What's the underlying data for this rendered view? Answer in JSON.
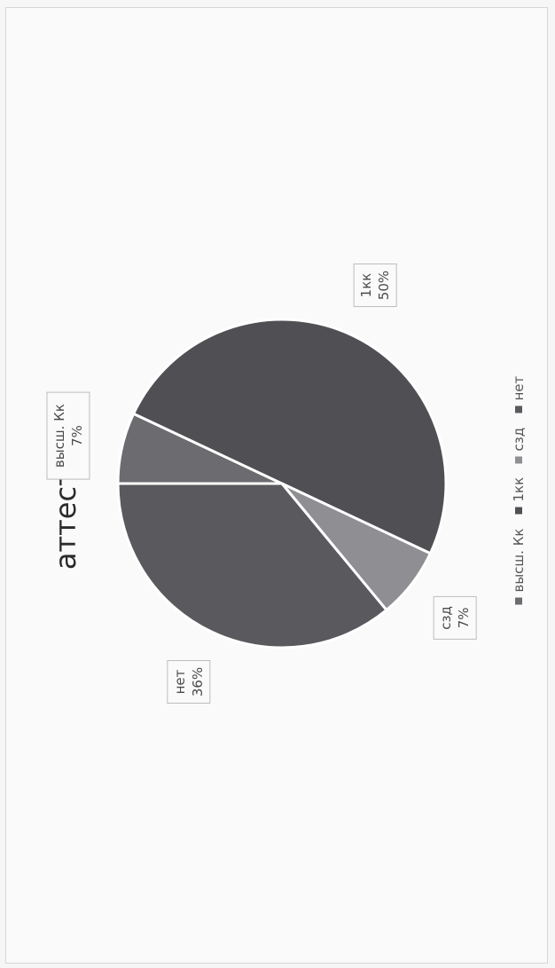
{
  "chart_data": {
    "type": "pie",
    "title": "аттестация",
    "categories": [
      "высш. Кк",
      "1кк",
      "сзд",
      "нет"
    ],
    "values": [
      7,
      50,
      7,
      36
    ],
    "data_labels": [
      {
        "category": "высш. Кк",
        "percent": "7%"
      },
      {
        "category": "1кк",
        "percent": "50%"
      },
      {
        "category": "сзд",
        "percent": "7%"
      },
      {
        "category": "нет",
        "percent": "36%"
      }
    ],
    "legend": {
      "position": "bottom",
      "entries": [
        "высш. Кк",
        "1кк",
        "сзд",
        "нет"
      ]
    },
    "colors": [
      "#6c6c70",
      "#505054",
      "#8f8f93",
      "#5a5a5e"
    ],
    "orientation": "rotated 90° counter-clockwise"
  }
}
